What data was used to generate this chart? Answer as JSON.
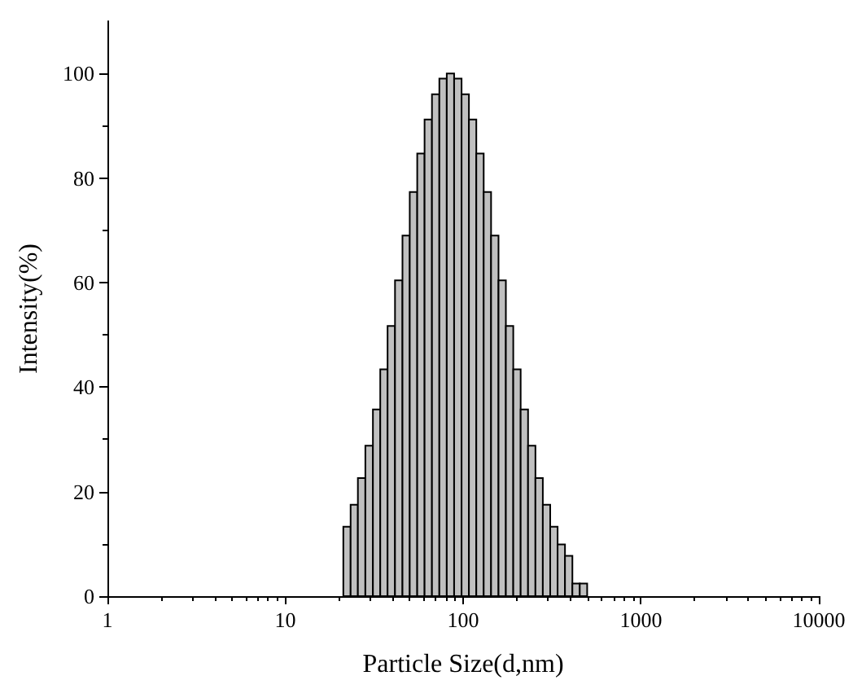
{
  "chart_data": {
    "type": "histogram",
    "xlabel": "Particle Size(d,nm)",
    "ylabel": "Intensity(%)",
    "bins": [
      21.2,
      23.3,
      25.6,
      28.2,
      31.1,
      34.2,
      37.6,
      41.4,
      45.6,
      50.1,
      55.2,
      60.7,
      66.8,
      73.5,
      80.9,
      89.0,
      98.0,
      107.8,
      118.6,
      130.5,
      143.6,
      158.1,
      173.9,
      191.4,
      210.6,
      231.8,
      255.0,
      280.6,
      308.8,
      339.8,
      373.9,
      411.5,
      452.8,
      498.3
    ],
    "values": [
      13.3,
      17.5,
      22.6,
      28.8,
      35.7,
      43.4,
      51.7,
      60.4,
      69.0,
      77.3,
      84.7,
      91.2,
      96.0,
      99.0,
      100,
      99.0,
      96.0,
      91.2,
      84.7,
      77.3,
      69.0,
      60.4,
      51.7,
      43.4,
      35.7,
      28.8,
      22.6,
      17.5,
      13.3,
      9.9,
      7.7,
      2.4,
      2.4
    ],
    "color": "#c0c0c0",
    "log": "x",
    "xlim": [
      1,
      10000
    ],
    "xticks": [
      1,
      10,
      100,
      1000,
      10000
    ],
    "ylim": [
      0,
      110
    ],
    "yticks": [
      0,
      20,
      40,
      60,
      80,
      100
    ],
    "grid": false
  }
}
